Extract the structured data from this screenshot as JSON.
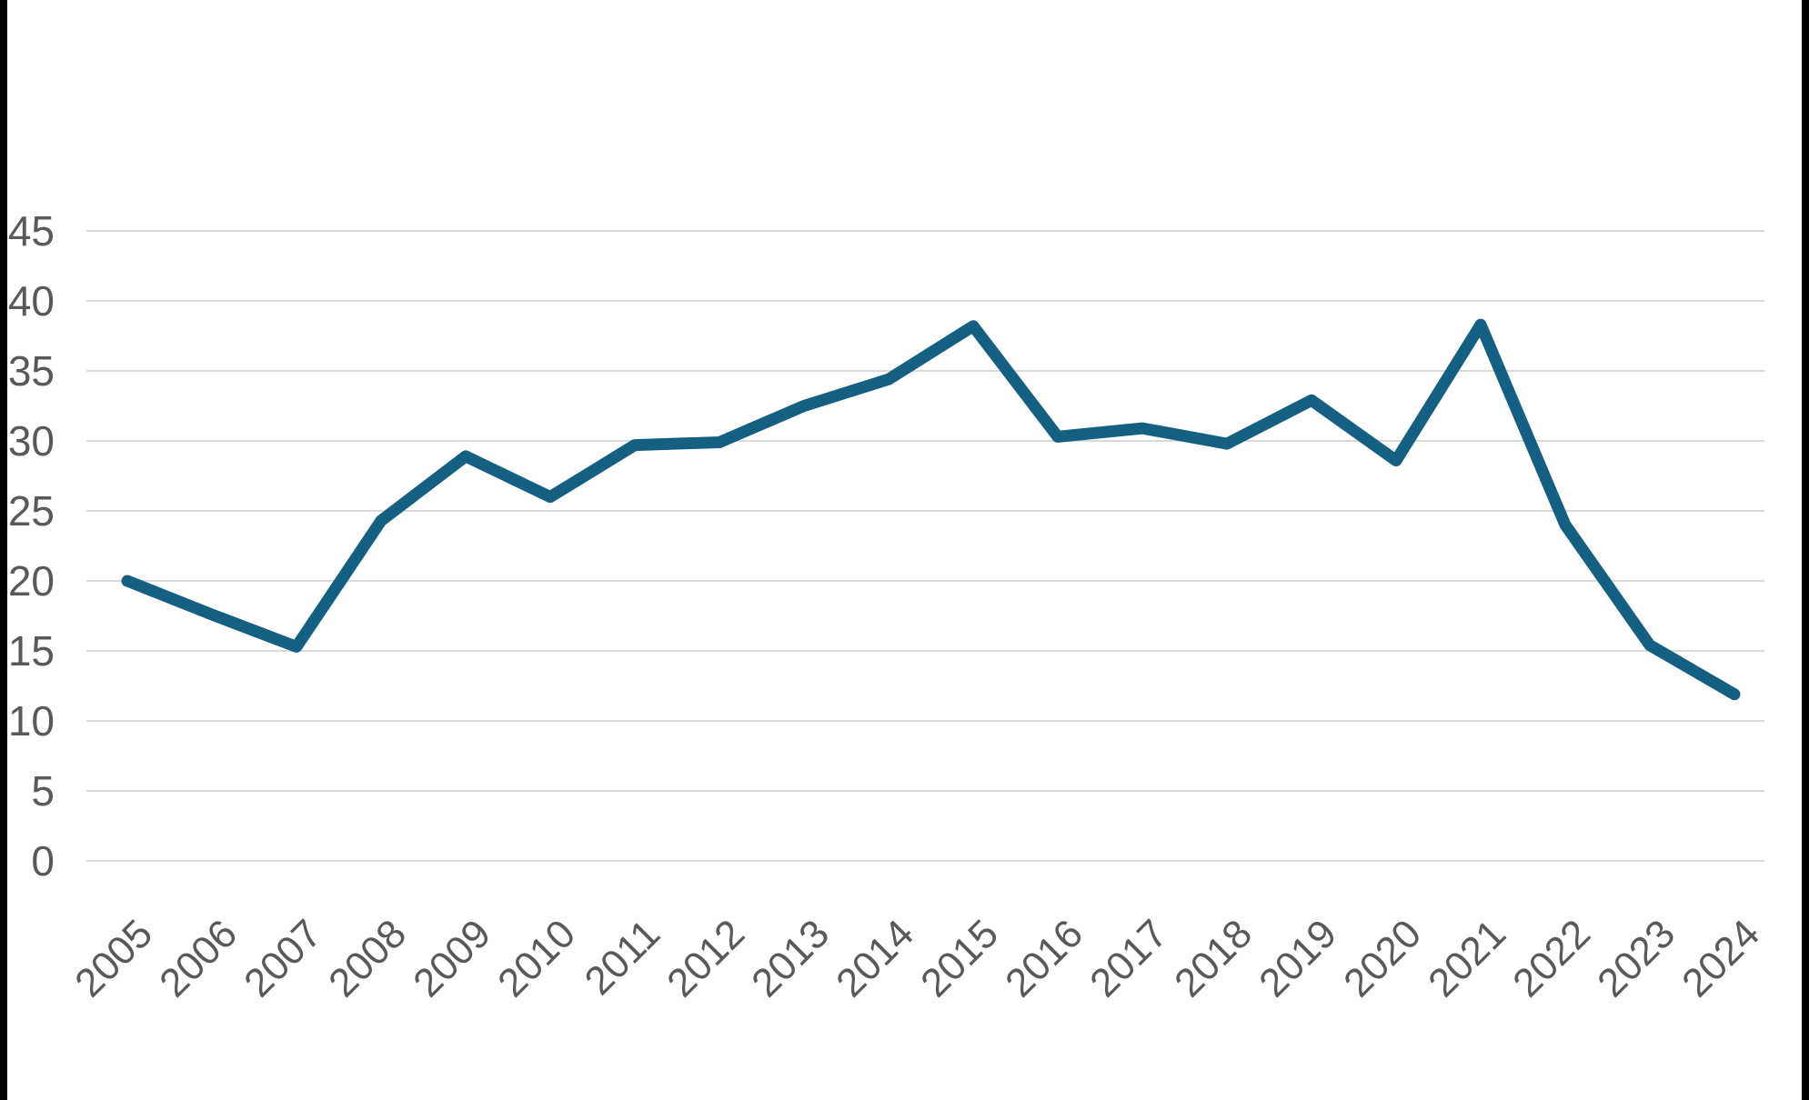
{
  "chart_data": {
    "type": "line",
    "title": "",
    "xlabel": "",
    "ylabel": "",
    "x": [
      2005,
      2006,
      2007,
      2008,
      2009,
      2010,
      2011,
      2012,
      2013,
      2014,
      2015,
      2016,
      2017,
      2018,
      2019,
      2020,
      2021,
      2022,
      2023,
      2024
    ],
    "series": [
      {
        "name": "",
        "values": [
          20,
          17.6,
          15.3,
          24.3,
          28.9,
          26,
          29.7,
          29.9,
          32.5,
          34.4,
          38.2,
          30.3,
          30.9,
          29.8,
          32.9,
          28.6,
          38.3,
          24,
          15.4,
          11.9
        ]
      }
    ],
    "ylim": [
      0,
      45
    ],
    "y_ticks": [
      0,
      5,
      10,
      15,
      20,
      25,
      30,
      35,
      40,
      45
    ],
    "grid": true,
    "legend": false,
    "colors": {
      "line": "#156082",
      "gridline": "#d9d9d9",
      "tick_label": "#595959",
      "background": "#ffffff",
      "edge_strip": "#000000"
    }
  }
}
